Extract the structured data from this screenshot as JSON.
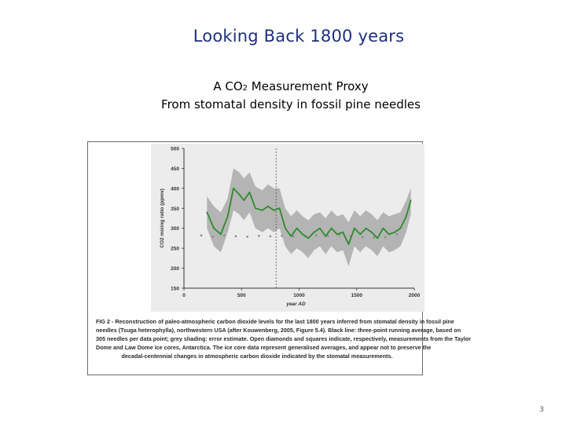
{
  "slide": {
    "title": "Looking Back 1800 years",
    "subtitle_prefix": "A CO",
    "subtitle_sub": "2",
    "subtitle_suffix": " Measurement Proxy",
    "subtitle_line2": "From stomatal density in fossil pine needles",
    "page_number": "3"
  },
  "figure": {
    "caption_lines": [
      "FIG 2 - Reconstruction of paleo-atmospheric carbon dioxide levels for the last 1800 years inferred from stomatal density in fossil pine",
      "needles (Tsuga heterophylla), northwestern USA (after Kouwenberg, 2005, Figure 5.4). Black line: three-point running average, based on",
      "305 needles per data point; grey shading: error estimate. Open diamonds and squares indicate, respectively, measurements from the Taylor",
      "Dome and Law Dome ice cores, Antarctica. The ice core data represent generalised averages, and appear not to preserve the",
      "decadal-centennial changes in atmospheric carbon dioxide indicated by the stomatal measurements."
    ]
  },
  "chart_data": {
    "type": "line",
    "xlabel": "year AD",
    "ylabel": "CO2 mixing ratio (ppmv)",
    "xlim": [
      0,
      2000
    ],
    "ylim": [
      150,
      500
    ],
    "xticks": [
      0,
      500,
      1000,
      1500,
      2000
    ],
    "yticks": [
      150,
      200,
      250,
      300,
      350,
      400,
      450,
      500
    ],
    "marker_line_x": 800,
    "colors": {
      "line": "#2e8b2e",
      "band": "#b4b4b4",
      "ice": "#8a8a8a",
      "panel": "#ececec"
    },
    "series": [
      {
        "x": [
          200,
          260,
          320,
          380,
          430,
          480,
          520,
          570,
          620,
          680,
          730,
          780,
          830,
          880,
          930,
          980,
          1030,
          1080,
          1130,
          1180,
          1230,
          1280,
          1330,
          1380,
          1430,
          1480,
          1530,
          1580,
          1630,
          1680,
          1730,
          1780,
          1830,
          1880,
          1930,
          1970
        ],
        "values": [
          340,
          300,
          285,
          330,
          400,
          385,
          370,
          390,
          350,
          345,
          355,
          345,
          350,
          300,
          280,
          300,
          285,
          275,
          290,
          300,
          280,
          300,
          285,
          290,
          260,
          300,
          285,
          300,
          290,
          275,
          300,
          285,
          290,
          300,
          330,
          370
        ],
        "upper": [
          380,
          355,
          340,
          375,
          450,
          440,
          425,
          440,
          405,
          395,
          410,
          400,
          400,
          350,
          330,
          345,
          330,
          320,
          335,
          340,
          325,
          345,
          330,
          335,
          315,
          345,
          330,
          345,
          335,
          320,
          340,
          330,
          335,
          340,
          370,
          400
        ],
        "lower": [
          300,
          255,
          240,
          290,
          345,
          335,
          320,
          340,
          300,
          290,
          300,
          290,
          300,
          255,
          235,
          250,
          240,
          225,
          245,
          255,
          235,
          255,
          240,
          245,
          205,
          255,
          240,
          255,
          245,
          230,
          255,
          240,
          245,
          255,
          290,
          335
        ]
      }
    ],
    "ice_core": {
      "x": [
        150,
        250,
        350,
        450,
        550,
        650,
        750,
        850,
        950,
        1050,
        1150,
        1250,
        1350,
        1450,
        1550,
        1650,
        1750,
        1850
      ],
      "values": [
        282,
        279,
        282,
        280,
        279,
        281,
        280,
        281,
        280,
        281,
        282,
        281,
        283,
        281,
        278,
        277,
        278,
        285
      ]
    }
  }
}
